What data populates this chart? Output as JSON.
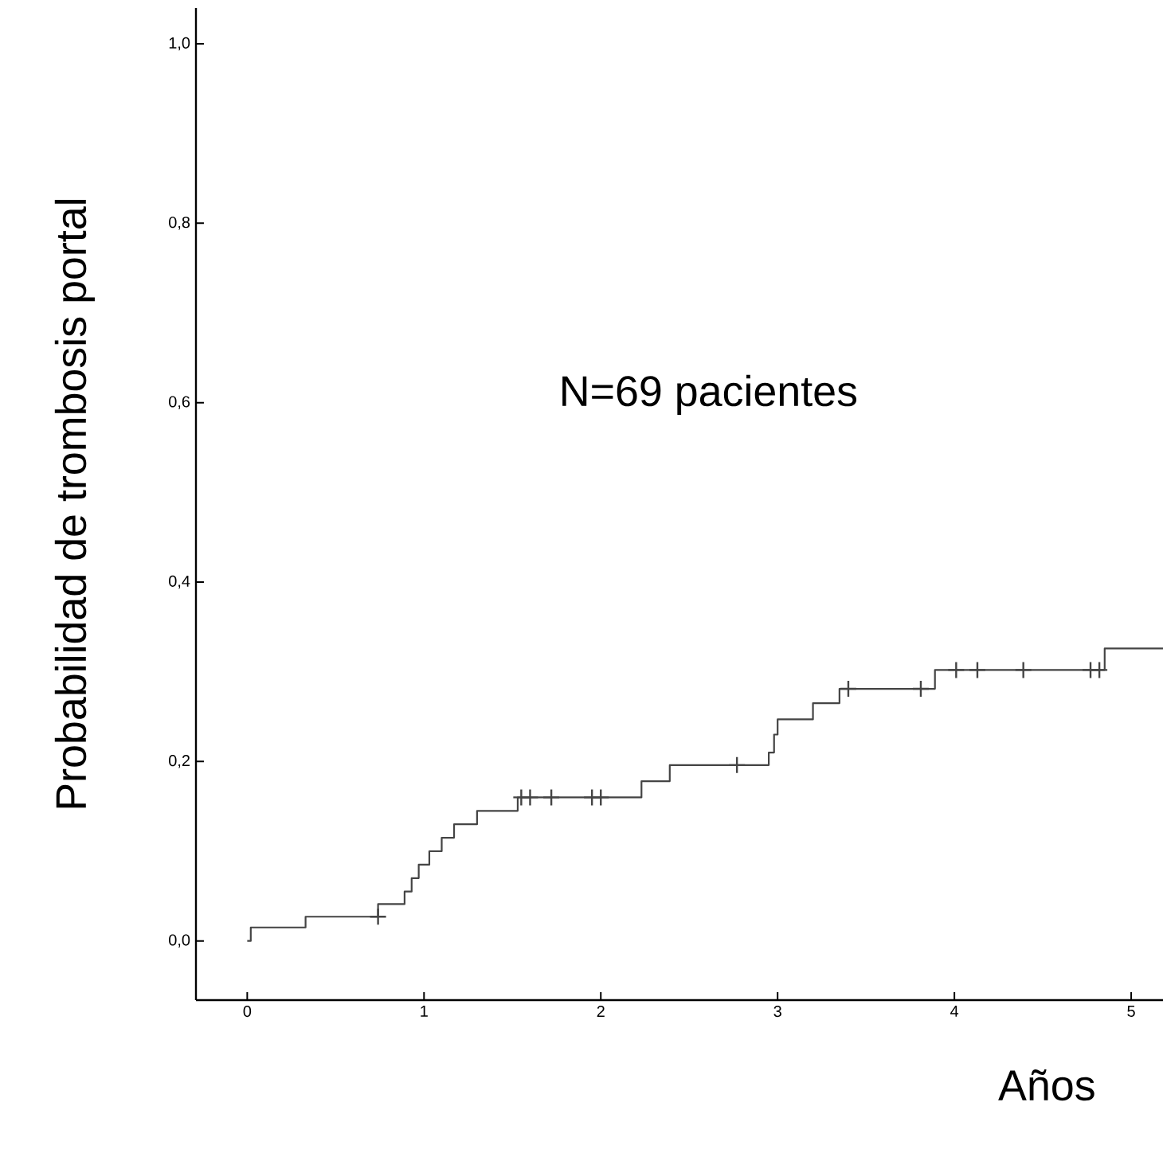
{
  "chart_data": {
    "type": "step",
    "xlabel": "Años",
    "ylabel": "Probabilidad de trombosis portal",
    "annotations": [
      "N=69 pacientes"
    ],
    "xlim": [
      -0.29,
      5.18
    ],
    "ylim": [
      -0.066,
      1.04
    ],
    "xticks": [
      0,
      1,
      2,
      3,
      4,
      5
    ],
    "yticks": [
      {
        "value": 0,
        "label": "0,0"
      },
      {
        "value": 0.2,
        "label": "0,2"
      },
      {
        "value": 0.4,
        "label": "0,4"
      },
      {
        "value": 0.6,
        "label": "0,6"
      },
      {
        "value": 0.8,
        "label": "0,8"
      },
      {
        "value": 1.0,
        "label": "1,0"
      }
    ],
    "grid": false,
    "series": [
      {
        "color": "#444444",
        "marker": "none",
        "x": [
          0,
          0.02,
          0.33,
          0.74,
          0.89,
          0.93,
          0.97,
          1.03,
          1.1,
          1.17,
          1.3,
          1.53,
          2.23,
          2.39,
          2.95,
          2.98,
          3.0,
          3.05,
          3.2,
          3.35,
          3.89,
          4.85,
          5.18
        ],
        "values": [
          0,
          0.015,
          0.027,
          0.041,
          0.055,
          0.07,
          0.085,
          0.1,
          0.115,
          0.13,
          0.145,
          0.16,
          0.178,
          0.196,
          0.21,
          0.23,
          0.247,
          0.247,
          0.265,
          0.281,
          0.302,
          0.326,
          0.326
        ]
      },
      {
        "type": "scatter",
        "color": "#444444",
        "marker": "cross",
        "x": [
          0.74,
          1.55,
          1.6,
          1.72,
          1.95,
          2.0,
          2.77,
          3.4,
          3.81,
          4.01,
          4.13,
          4.39,
          4.77,
          4.82
        ],
        "values": [
          0.027,
          0.16,
          0.16,
          0.16,
          0.16,
          0.16,
          0.196,
          0.281,
          0.281,
          0.302,
          0.302,
          0.302,
          0.302,
          0.302
        ]
      }
    ]
  }
}
